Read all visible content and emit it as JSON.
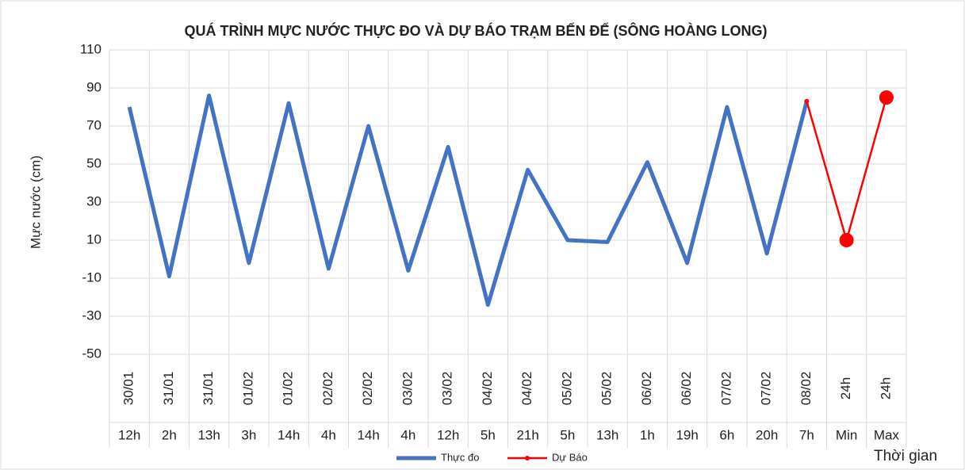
{
  "chart_data": {
    "type": "line",
    "title": "QUÁ TRÌNH MỰC NƯỚC THỰC ĐO VÀ DỰ BÁO TRẠM BẾN ĐẾ (SÔNG HOÀNG LONG)",
    "y_label": "Mực nước (cm)",
    "x_label": "Thời gian",
    "categories": [
      "30/01",
      "31/01",
      "31/01",
      "01/02",
      "01/02",
      "02/02",
      "02/02",
      "03/02",
      "03/02",
      "04/02",
      "04/02",
      "05/02",
      "05/02",
      "06/02",
      "06/02",
      "07/02",
      "07/02",
      "08/02",
      "24h",
      "24h"
    ],
    "categories2": [
      "12h",
      "2h",
      "13h",
      "3h",
      "14h",
      "4h",
      "14h",
      "4h",
      "12h",
      "5h",
      "21h",
      "5h",
      "13h",
      "1h",
      "19h",
      "6h",
      "20h",
      "7h",
      "Min",
      "Max"
    ],
    "series": [
      {
        "name": "Thực đo",
        "color": "#4472c4",
        "values": [
          80,
          -9,
          86,
          -2,
          82,
          -5,
          70,
          -6,
          59,
          -24,
          47,
          10,
          9,
          51,
          -2,
          80,
          3,
          83,
          null,
          null
        ]
      },
      {
        "name": "Dự Báo",
        "color": "#ff0000",
        "values": [
          null,
          null,
          null,
          null,
          null,
          null,
          null,
          null,
          null,
          null,
          null,
          null,
          null,
          null,
          null,
          null,
          null,
          83,
          10,
          85
        ]
      }
    ],
    "ylim": [
      -50,
      110
    ],
    "yticks": [
      -50,
      -30,
      -10,
      10,
      30,
      50,
      70,
      90,
      110
    ],
    "grid": true,
    "legend": "bottom"
  }
}
